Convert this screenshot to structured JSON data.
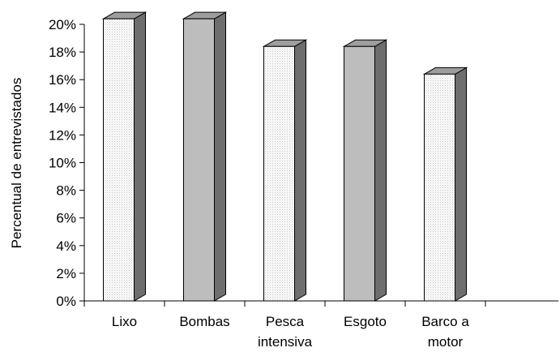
{
  "chart_data": {
    "type": "bar",
    "categories": [
      [
        "Lixo"
      ],
      [
        "Bombas"
      ],
      [
        "Pesca",
        "intensiva"
      ],
      [
        "Esgoto"
      ],
      [
        "Barco a",
        "motor"
      ]
    ],
    "values": [
      20.4,
      20.4,
      18.4,
      18.4,
      16.4
    ],
    "ylabel": "Percentual de entrevistados",
    "xlabel": "",
    "ylim": [
      0,
      20
    ],
    "ytick_values": [
      0,
      2,
      4,
      6,
      8,
      10,
      12,
      14,
      16,
      18,
      20
    ],
    "ytick_suffix": "%",
    "grid": false,
    "style": "3d-bar",
    "colors": {
      "front_dotted": "#ededed",
      "front_solid": "#bdbdbd",
      "side": "#6e6e6e",
      "top": "#9e9e9e",
      "stroke": "#000000"
    },
    "bar_fill_pattern": [
      "dotted",
      "solid",
      "dotted",
      "solid",
      "dotted"
    ]
  }
}
